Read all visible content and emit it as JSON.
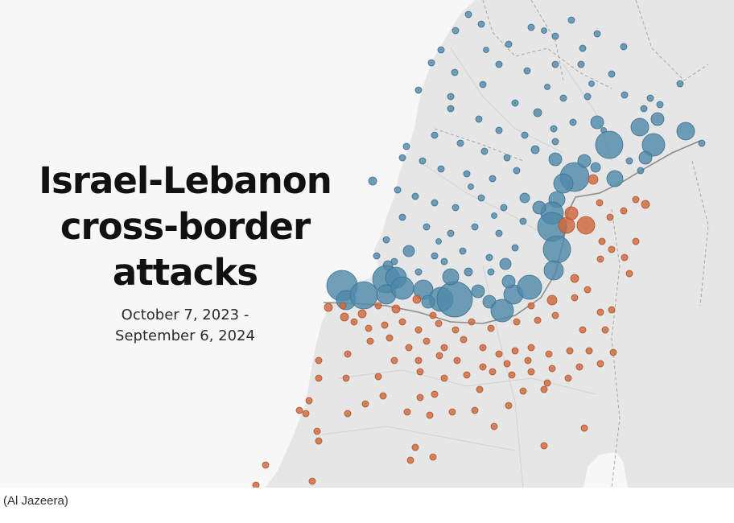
{
  "title": {
    "line1": "Israel-Lebanon",
    "line2": "cross-border",
    "line3": "attacks"
  },
  "date_range": {
    "line1": "October 7, 2023 -",
    "line2": "September 6, 2024"
  },
  "caption": "(Al Jazeera)",
  "colors": {
    "blue_markers": "#4f8aaa",
    "orange_markers": "#d0683c",
    "land": "#e6e6e6",
    "sea": "#f7f7f7",
    "border_line": "#8c8c8c"
  },
  "legend_note": "Blue circles appear north of the border (Lebanon); orange circles south of the border (Israel)."
}
